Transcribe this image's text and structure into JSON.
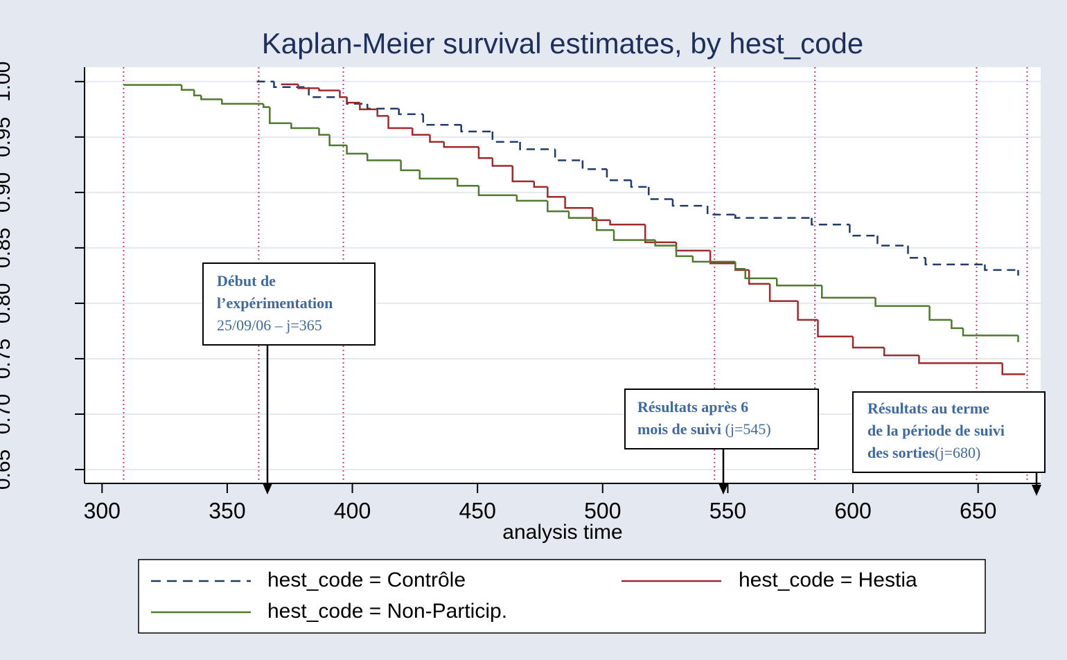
{
  "chart_data": {
    "type": "step",
    "title": "Kaplan-Meier survival estimates, by hest_code",
    "x_label": "analysis time",
    "xlim": [
      293,
      675
    ],
    "xticks": [
      300,
      350,
      400,
      450,
      500,
      550,
      600,
      650
    ],
    "ylim": [
      0.6375,
      1.013
    ],
    "yticks": [
      {
        "value": 0.65,
        "label": "0.65"
      },
      {
        "value": 0.7,
        "label": "0.70"
      },
      {
        "value": 0.75,
        "label": "0.75"
      },
      {
        "value": 0.8,
        "label": "0.80"
      },
      {
        "value": 0.85,
        "label": "0.85"
      },
      {
        "value": 0.9,
        "label": "0.90"
      },
      {
        "value": 0.95,
        "label": "0.95"
      },
      {
        "value": 1,
        "label": "1.00"
      }
    ],
    "grid": true,
    "reference_lines_x": [
      308.6,
      362.6,
      396.4,
      544.7,
      584.8,
      649.4,
      669.6
    ],
    "series": [
      {
        "name": "hest_code = Contrôle",
        "color": "#1f3a6e",
        "dash": true,
        "x": [
          361.8,
          368.7,
          382.6,
          397.8,
          406,
          418.6,
          428.3,
          443.5,
          456,
          467,
          481,
          492,
          501.7,
          511.4,
          518.4,
          528,
          541.9,
          553,
          583.5,
          598.7,
          609.8,
          622,
          629,
          652.7,
          666
        ],
        "values": [
          1.0,
          0.995,
          0.986,
          0.98,
          0.9756,
          0.9706,
          0.961,
          0.955,
          0.9456,
          0.939,
          0.929,
          0.921,
          0.911,
          0.905,
          0.894,
          0.888,
          0.88,
          0.877,
          0.871,
          0.861,
          0.852,
          0.841,
          0.835,
          0.83,
          0.825
        ]
      },
      {
        "name": "hest_code = Hestia",
        "color": "#9e2a2b",
        "dash": false,
        "x": [
          371.5,
          378.4,
          386.7,
          395,
          397.8,
          403,
          410,
          414.4,
          424,
          431,
          436.6,
          450.5,
          456,
          464,
          472.6,
          478,
          485,
          496,
          503,
          517,
          529.4,
          543,
          553,
          558.5,
          566.8,
          578,
          586,
          600,
          612.5,
          626.4,
          659.7,
          668.8
        ],
        "values": [
          0.9975,
          0.994,
          0.992,
          0.986,
          0.981,
          0.975,
          0.969,
          0.958,
          0.952,
          0.9456,
          0.941,
          0.931,
          0.924,
          0.91,
          0.905,
          0.896,
          0.886,
          0.875,
          0.871,
          0.855,
          0.8475,
          0.836,
          0.83,
          0.8175,
          0.802,
          0.785,
          0.77,
          0.76,
          0.753,
          0.746,
          0.736,
          0.736
        ]
      },
      {
        "name": "hest_code = Non-Particip.",
        "color": "#4e7a2c",
        "dash": false,
        "x": [
          308.6,
          328.5,
          331.8,
          336.8,
          339.6,
          347.9,
          364.5,
          367,
          375.6,
          386.7,
          390.9,
          397.8,
          406,
          419.4,
          426.9,
          442,
          450.5,
          465.7,
          478,
          486.5,
          497.6,
          504.5,
          521,
          529.4,
          536,
          553,
          557,
          569.6,
          587.6,
          609,
          630.6,
          639.4,
          644,
          666
        ],
        "values": [
          0.997,
          0.997,
          0.9925,
          0.9875,
          0.984,
          0.98,
          0.977,
          0.9625,
          0.958,
          0.952,
          0.9425,
          0.935,
          0.929,
          0.92,
          0.9125,
          0.906,
          0.8975,
          0.8925,
          0.883,
          0.877,
          0.866,
          0.857,
          0.852,
          0.8425,
          0.8375,
          0.831,
          0.8225,
          0.816,
          0.805,
          0.7975,
          0.785,
          0.7775,
          0.771,
          0.765
        ]
      }
    ],
    "annotations": [
      {
        "lines": [
          "Début de",
          "l’expérimentation"
        ],
        "note": "25/09/06 – j=365"
      },
      {
        "lines": [
          "Résultats après 6",
          "mois de suivi"
        ],
        "note": " (j=545)"
      },
      {
        "lines": [
          "Résultats au terme",
          "de la période de suivi",
          "des sorties"
        ],
        "note": "(j=680)"
      }
    ]
  }
}
